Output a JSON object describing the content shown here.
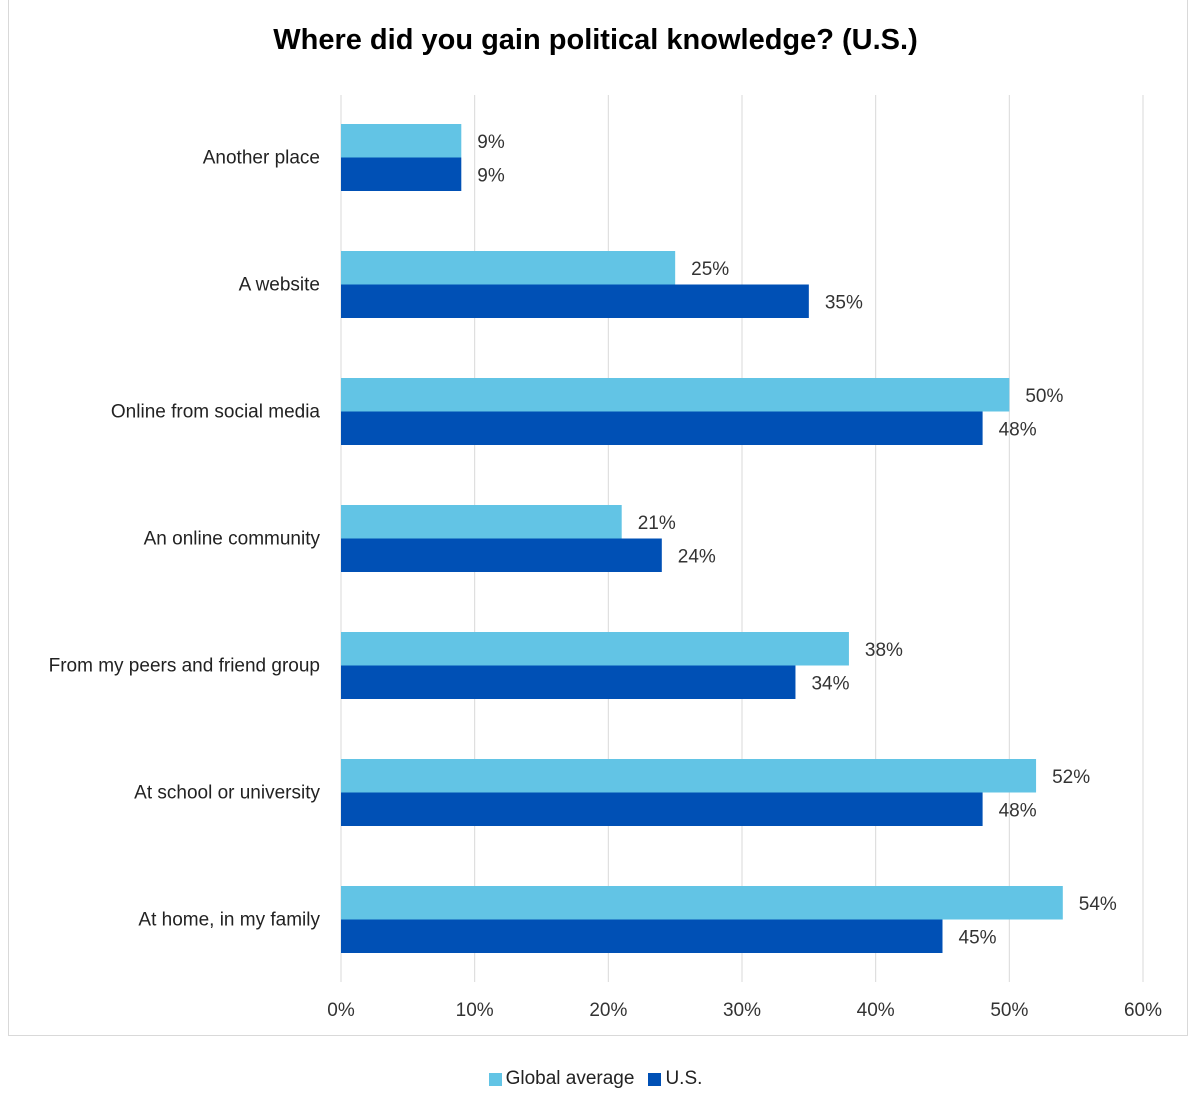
{
  "chart_data": {
    "type": "bar",
    "orientation": "horizontal",
    "title": "Where did you gain political knowledge? (U.S.)",
    "categories": [
      "Another place",
      "A website",
      "Online from social media",
      "An online community",
      "From my peers and friend group",
      "At school or university",
      "At home, in my family"
    ],
    "series": [
      {
        "name": "Global average",
        "color": "#62c4e5",
        "values": [
          9,
          25,
          50,
          21,
          38,
          52,
          54
        ],
        "labels": [
          "9%",
          "25%",
          "50%",
          "21%",
          "38%",
          "52%",
          "54%"
        ]
      },
      {
        "name": "U.S.",
        "color": "#0050b5",
        "values": [
          9,
          35,
          48,
          24,
          34,
          48,
          45
        ],
        "labels": [
          "9%",
          "35%",
          "48%",
          "24%",
          "34%",
          "48%",
          "45%"
        ]
      }
    ],
    "xlim": [
      0,
      60
    ],
    "xticks": [
      0,
      10,
      20,
      30,
      40,
      50,
      60
    ],
    "xtick_labels": [
      "0%",
      "10%",
      "20%",
      "30%",
      "40%",
      "50%",
      "60%"
    ],
    "grid": "vertical",
    "legend_position": "bottom"
  }
}
